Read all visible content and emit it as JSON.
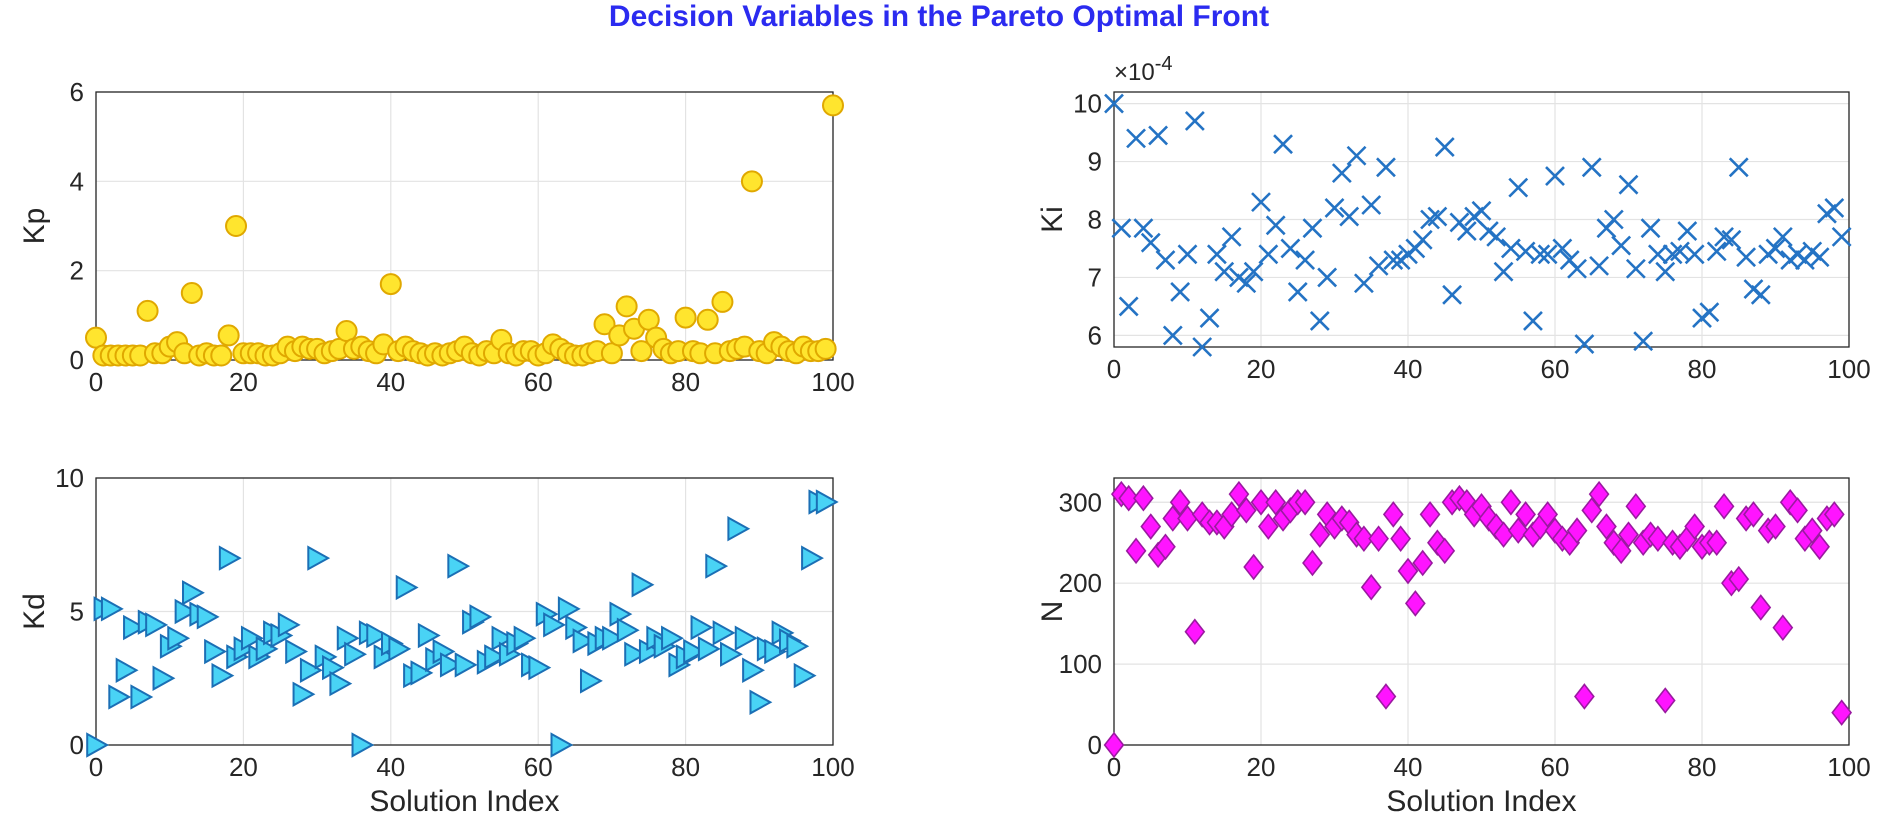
{
  "title": "Decision Variables in the Pareto Optimal Front",
  "chart_data": [
    {
      "id": "kp",
      "type": "scatter",
      "marker": "circle",
      "color": "#ffe52e",
      "edge": "#e0a800",
      "xlabel": "",
      "ylabel": "Kp",
      "xlim": [
        0,
        100
      ],
      "ylim": [
        0,
        6
      ],
      "xticks": [
        "0",
        "20",
        "40",
        "60",
        "80",
        "100"
      ],
      "yticks": [
        "0",
        "2",
        "4",
        "6"
      ],
      "exponent": "",
      "values": [
        0.5,
        0.1,
        0.1,
        0.1,
        0.1,
        0.1,
        0.1,
        1.1,
        0.15,
        0.15,
        0.3,
        0.4,
        0.15,
        1.5,
        0.1,
        0.15,
        0.1,
        0.1,
        0.55,
        3.0,
        0.15,
        0.15,
        0.15,
        0.1,
        0.1,
        0.15,
        0.3,
        0.2,
        0.3,
        0.25,
        0.25,
        0.15,
        0.2,
        0.25,
        0.65,
        0.25,
        0.3,
        0.2,
        0.15,
        0.35,
        1.7,
        0.2,
        0.3,
        0.2,
        0.15,
        0.1,
        0.15,
        0.1,
        0.15,
        0.2,
        0.3,
        0.15,
        0.1,
        0.2,
        0.15,
        0.45,
        0.15,
        0.1,
        0.2,
        0.2,
        0.1,
        0.15,
        0.35,
        0.25,
        0.15,
        0.1,
        0.1,
        0.15,
        0.2,
        0.8,
        0.15,
        0.55,
        1.2,
        0.7,
        0.2,
        0.9,
        0.5,
        0.25,
        0.15,
        0.2,
        0.95,
        0.2,
        0.15,
        0.9,
        0.15,
        1.3,
        0.2,
        0.25,
        0.3,
        4.0,
        0.2,
        0.15,
        0.4,
        0.3,
        0.2,
        0.15,
        0.3,
        0.2,
        0.2,
        0.25,
        5.7
      ]
    },
    {
      "id": "ki",
      "type": "scatter",
      "marker": "x",
      "color": "#2473c4",
      "edge": "#2473c4",
      "xlabel": "",
      "ylabel": "Ki",
      "xlim": [
        0,
        100
      ],
      "ylim": [
        5.8,
        10.2
      ],
      "xticks": [
        "0",
        "20",
        "40",
        "60",
        "80",
        "100"
      ],
      "yticks": [
        "6",
        "7",
        "8",
        "9",
        "10"
      ],
      "exponent": "×10-4",
      "values": [
        10.0,
        7.85,
        6.5,
        9.4,
        7.85,
        7.6,
        9.45,
        7.3,
        6.0,
        6.75,
        7.4,
        9.7,
        5.8,
        6.3,
        7.4,
        7.1,
        7.7,
        7.0,
        6.9,
        7.1,
        8.3,
        7.4,
        7.9,
        9.3,
        7.5,
        6.75,
        7.3,
        7.85,
        6.25,
        7.0,
        8.2,
        8.8,
        8.05,
        9.1,
        6.9,
        8.25,
        7.2,
        8.9,
        7.3,
        7.3,
        7.4,
        7.5,
        7.65,
        8.0,
        8.05,
        9.25,
        6.7,
        7.95,
        7.8,
        8.05,
        8.15,
        7.8,
        7.7,
        7.1,
        7.5,
        8.55,
        7.45,
        6.25,
        7.4,
        7.4,
        8.75,
        7.5,
        7.3,
        7.15,
        5.85,
        8.9,
        7.2,
        7.85,
        8.0,
        7.55,
        8.6,
        7.15,
        5.9,
        7.85,
        7.4,
        7.1,
        7.4,
        7.45,
        7.8,
        7.4,
        6.3,
        6.4,
        7.45,
        7.7,
        7.65,
        8.9,
        7.35,
        6.8,
        6.7,
        7.4,
        7.5,
        7.7,
        7.3,
        7.4,
        7.3,
        7.45,
        7.35,
        8.1,
        8.2,
        7.7
      ]
    },
    {
      "id": "kd",
      "type": "scatter",
      "marker": "triangle-right",
      "color": "#49d3f5",
      "edge": "#1b6fb5",
      "xlabel": "Solution Index",
      "ylabel": "Kd",
      "xlim": [
        0,
        100
      ],
      "ylim": [
        0,
        10
      ],
      "xticks": [
        "0",
        "20",
        "40",
        "60",
        "80",
        "100"
      ],
      "yticks": [
        "0",
        "5",
        "10"
      ],
      "exponent": "",
      "values": [
        0.0,
        5.1,
        5.1,
        1.8,
        2.8,
        4.4,
        1.8,
        4.6,
        4.5,
        2.5,
        3.7,
        4.0,
        5.0,
        5.7,
        4.9,
        4.8,
        3.5,
        2.6,
        7.0,
        3.3,
        3.6,
        4.0,
        3.3,
        3.6,
        4.2,
        4.1,
        4.5,
        3.5,
        1.9,
        2.8,
        7.0,
        3.3,
        2.9,
        2.3,
        4.0,
        3.4,
        0.0,
        4.2,
        4.1,
        3.3,
        3.8,
        3.6,
        5.9,
        2.6,
        2.7,
        4.1,
        3.2,
        3.5,
        3.0,
        6.7,
        3.0,
        4.6,
        4.8,
        3.1,
        3.3,
        4.0,
        3.4,
        3.8,
        4.0,
        3.0,
        2.9,
        4.9,
        4.5,
        0.0,
        5.1,
        4.4,
        3.9,
        2.4,
        3.8,
        4.0,
        4.0,
        4.9,
        4.3,
        3.4,
        6.0,
        3.5,
        4.0,
        3.7,
        4.0,
        3.0,
        3.3,
        3.5,
        4.4,
        3.6,
        6.7,
        4.2,
        3.4,
        8.1,
        4.0,
        2.8,
        1.6,
        3.6,
        3.5,
        4.2,
        3.9,
        3.7,
        2.6,
        7.0,
        9.1,
        9.1
      ]
    },
    {
      "id": "n",
      "type": "scatter",
      "marker": "diamond",
      "color": "#ff14ff",
      "edge": "#9a1aa0",
      "xlabel": "Solution Index",
      "ylabel": "N",
      "xlim": [
        0,
        100
      ],
      "ylim": [
        0,
        330
      ],
      "xticks": [
        "0",
        "20",
        "40",
        "60",
        "80",
        "100"
      ],
      "yticks": [
        "0",
        "100",
        "200",
        "300"
      ],
      "exponent": "",
      "values": [
        0,
        310,
        305,
        240,
        305,
        270,
        235,
        245,
        280,
        300,
        280,
        140,
        285,
        275,
        275,
        270,
        285,
        310,
        290,
        220,
        300,
        270,
        300,
        280,
        290,
        300,
        300,
        225,
        260,
        285,
        270,
        280,
        275,
        260,
        255,
        195,
        255,
        60,
        285,
        255,
        215,
        175,
        225,
        285,
        250,
        240,
        300,
        305,
        300,
        285,
        295,
        280,
        270,
        260,
        300,
        265,
        285,
        260,
        270,
        285,
        265,
        255,
        250,
        265,
        60,
        290,
        310,
        270,
        250,
        240,
        260,
        295,
        250,
        260,
        255,
        55,
        250,
        245,
        255,
        270,
        245,
        250,
        250,
        295,
        200,
        205,
        280,
        285,
        170,
        265,
        270,
        145,
        300,
        290,
        255,
        265,
        245,
        280,
        285,
        40
      ]
    }
  ]
}
